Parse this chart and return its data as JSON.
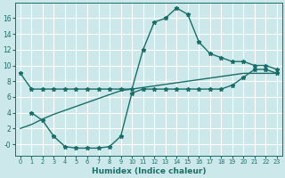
{
  "xlabel": "Humidex (Indice chaleur)",
  "bg_color": "#cde8ea",
  "grid_color": "#ffffff",
  "line_color": "#1a6e6a",
  "xlim": [
    -0.5,
    23.5
  ],
  "ylim": [
    -1.5,
    18.0
  ],
  "xticks": [
    0,
    1,
    2,
    3,
    4,
    5,
    6,
    7,
    8,
    9,
    10,
    11,
    12,
    13,
    14,
    15,
    16,
    17,
    18,
    19,
    20,
    21,
    22,
    23
  ],
  "yticks": [
    0,
    2,
    4,
    6,
    8,
    10,
    12,
    14,
    16
  ],
  "ytick_labels": [
    "-0",
    "2",
    "4",
    "6",
    "8",
    "10",
    "12",
    "14",
    "16"
  ],
  "line1_x": [
    0,
    1,
    2,
    3,
    4,
    5,
    6,
    7,
    8,
    9,
    10,
    11,
    12,
    13,
    14,
    15,
    16,
    17,
    18,
    19,
    20,
    21,
    22,
    23
  ],
  "line1_y": [
    9.0,
    7.0,
    7.0,
    7.0,
    7.0,
    7.0,
    7.0,
    7.0,
    7.0,
    7.0,
    7.0,
    12.0,
    15.5,
    16.0,
    17.3,
    16.5,
    13.0,
    11.5,
    11.0,
    10.5,
    10.5,
    10.0,
    10.0,
    9.5
  ],
  "line2_x": [
    1,
    2,
    3,
    4,
    5,
    6,
    7,
    8,
    9,
    10,
    11,
    12,
    13,
    14,
    15,
    16,
    17,
    18,
    19,
    20,
    21,
    22,
    23
  ],
  "line2_y": [
    4.0,
    3.0,
    1.0,
    -0.3,
    -0.5,
    -0.5,
    -0.5,
    -0.3,
    1.0,
    6.5,
    7.0,
    7.0,
    7.0,
    7.0,
    7.0,
    7.0,
    7.0,
    7.0,
    7.5,
    8.5,
    9.5,
    9.5,
    9.0
  ],
  "line3_x": [
    0,
    1,
    2,
    3,
    4,
    5,
    6,
    7,
    8,
    9,
    10,
    11,
    12,
    13,
    14,
    15,
    16,
    17,
    18,
    19,
    20,
    21,
    22,
    23
  ],
  "line3_y": [
    2.0,
    2.5,
    3.2,
    3.8,
    4.3,
    4.8,
    5.3,
    5.8,
    6.3,
    6.8,
    7.0,
    7.2,
    7.4,
    7.6,
    7.8,
    8.0,
    8.2,
    8.4,
    8.6,
    8.8,
    9.0,
    9.0,
    9.0,
    9.0
  ]
}
